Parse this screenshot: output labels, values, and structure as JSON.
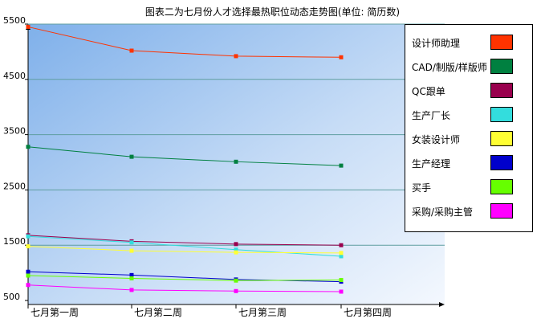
{
  "chart_data": {
    "type": "line",
    "title": "图表二为七月份人才选择最热职位动态走势图(单位: 简历数)",
    "categories": [
      "七月第一周",
      "七月第二周",
      "七月第三周",
      "七月第四周"
    ],
    "y_ticks": [
      "500",
      "1500",
      "2500",
      "3500",
      "4500",
      "5500"
    ],
    "ylim": [
      500,
      5500
    ],
    "grid": true,
    "legend_position": "right",
    "series": [
      {
        "name": "设计师助理",
        "color": "#ff3300",
        "values": [
          5450,
          5020,
          4920,
          4900
        ]
      },
      {
        "name": "CAD/制版/样版师",
        "color": "#008040",
        "values": [
          3280,
          3100,
          3010,
          2940
        ]
      },
      {
        "name": "QC跟单",
        "color": "#99004d",
        "values": [
          1680,
          1570,
          1520,
          1500
        ]
      },
      {
        "name": "生产厂长",
        "color": "#33dddd",
        "values": [
          1660,
          1550,
          1420,
          1300
        ]
      },
      {
        "name": "女装设计师",
        "color": "#ffff33",
        "values": [
          1480,
          1400,
          1370,
          1360
        ]
      },
      {
        "name": "生产经理",
        "color": "#0000cc",
        "values": [
          1020,
          960,
          880,
          840
        ]
      },
      {
        "name": "买手",
        "color": "#66ff00",
        "values": [
          950,
          900,
          860,
          870
        ]
      },
      {
        "name": "采购/采购主管",
        "color": "#ff00ff",
        "values": [
          780,
          690,
          670,
          660
        ]
      }
    ]
  }
}
